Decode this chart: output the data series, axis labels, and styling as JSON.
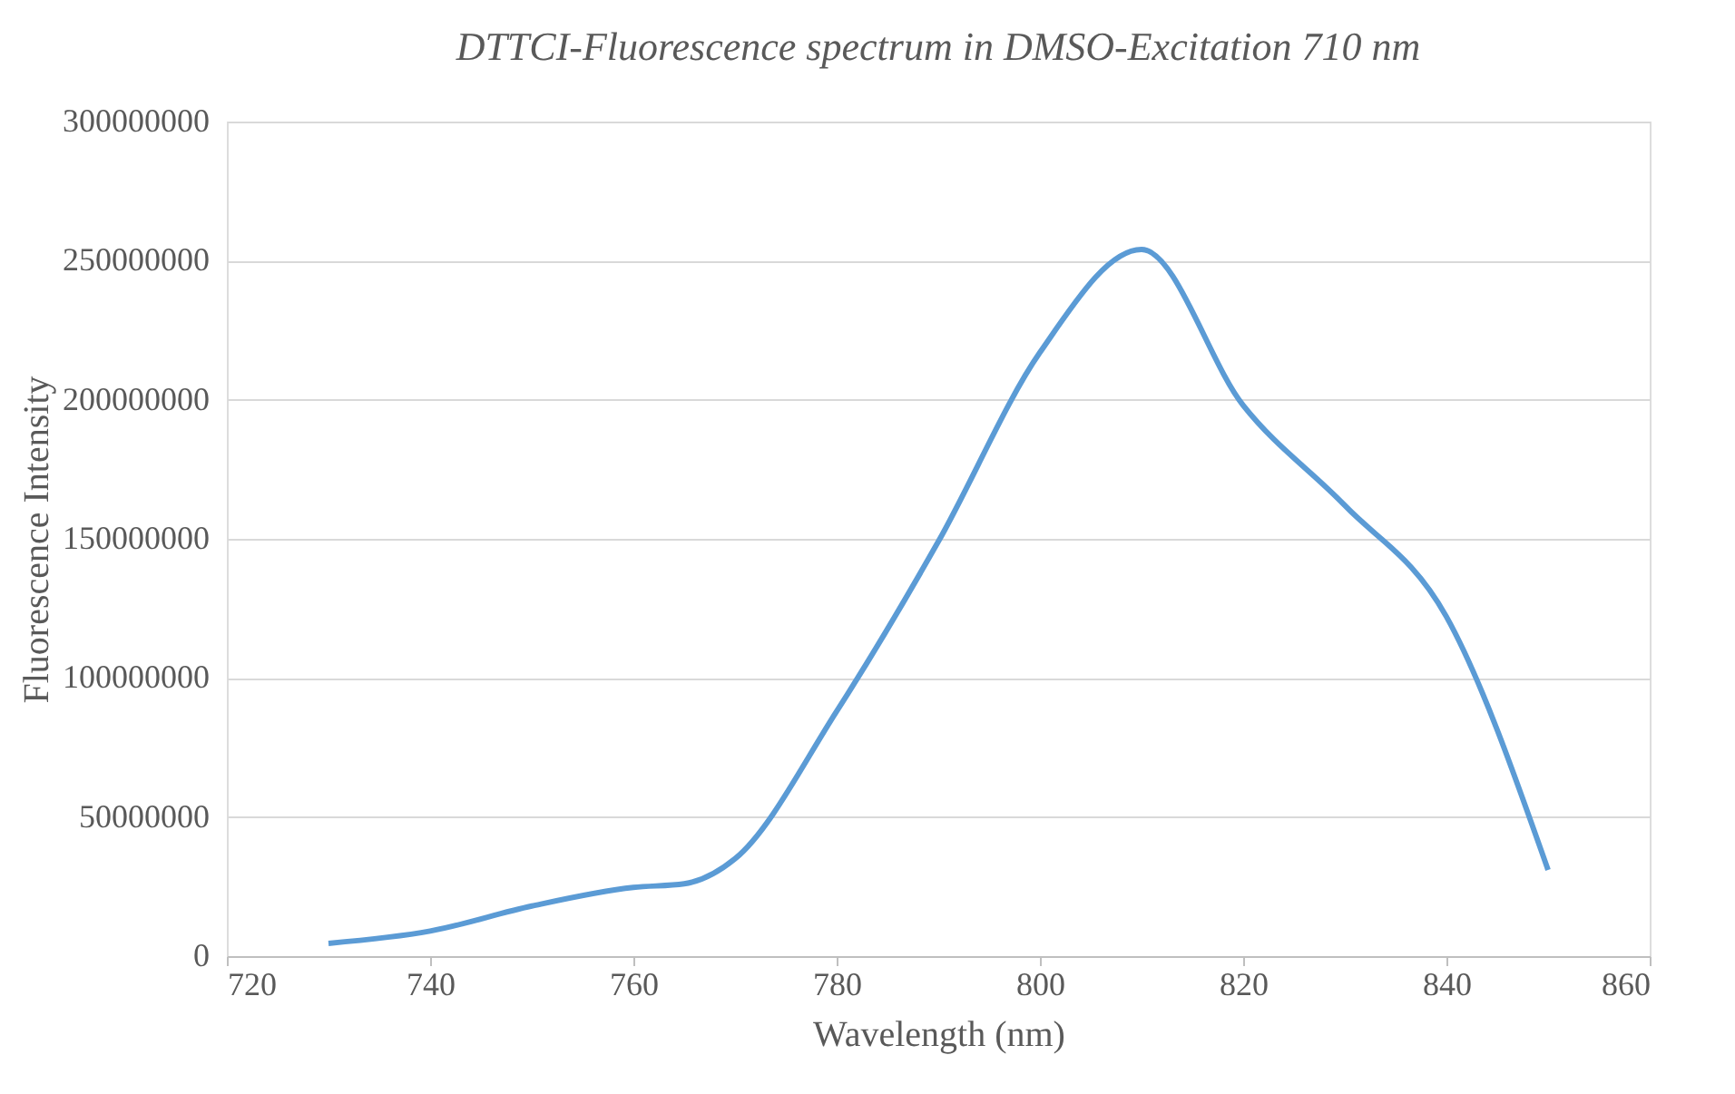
{
  "chart_data": {
    "type": "line",
    "title": "DTTCI-Fluorescence spectrum in DMSO-Excitation 710 nm",
    "xlabel": "Wavelength (nm)",
    "ylabel": "Fluorescence Intensity",
    "x": [
      730,
      740,
      750,
      760,
      765,
      770,
      780,
      790,
      800,
      810,
      820,
      830,
      840,
      850
    ],
    "series": [
      {
        "color": "#5b9bd5",
        "values": [
          4600000,
          9000000,
          18000000,
          24700000,
          26000000,
          35000000,
          88000000,
          149000000,
          217000000,
          254000000,
          198000000,
          162000000,
          122000000,
          31000000
        ]
      }
    ],
    "xlim": [
      720,
      860
    ],
    "xticks": [
      720,
      740,
      760,
      780,
      800,
      820,
      840,
      860
    ],
    "ylim": [
      0,
      300000000
    ],
    "yticks": [
      0,
      50000000,
      100000000,
      150000000,
      200000000,
      250000000,
      300000000
    ],
    "grid": "y",
    "marker": "none",
    "line_style": "solid"
  }
}
